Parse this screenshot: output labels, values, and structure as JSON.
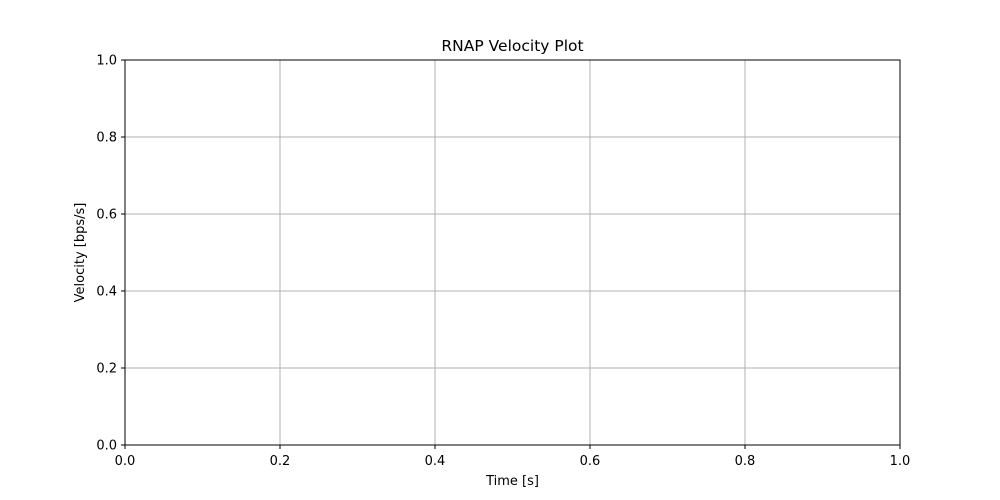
{
  "chart_data": {
    "type": "line",
    "title": "RNAP Velocity Plot",
    "xlabel": "Time [s]",
    "ylabel": "Velocity [bps/s]",
    "xlim": [
      0.0,
      1.0
    ],
    "ylim": [
      0.0,
      1.0
    ],
    "xticks": [
      "0.0",
      "0.2",
      "0.4",
      "0.6",
      "0.8",
      "1.0"
    ],
    "yticks": [
      "0.0",
      "0.2",
      "0.4",
      "0.6",
      "0.8",
      "1.0"
    ],
    "grid": true,
    "series": [],
    "colors": {
      "grid": "#b0b0b0",
      "axes": "#000000",
      "background": "#ffffff"
    }
  }
}
